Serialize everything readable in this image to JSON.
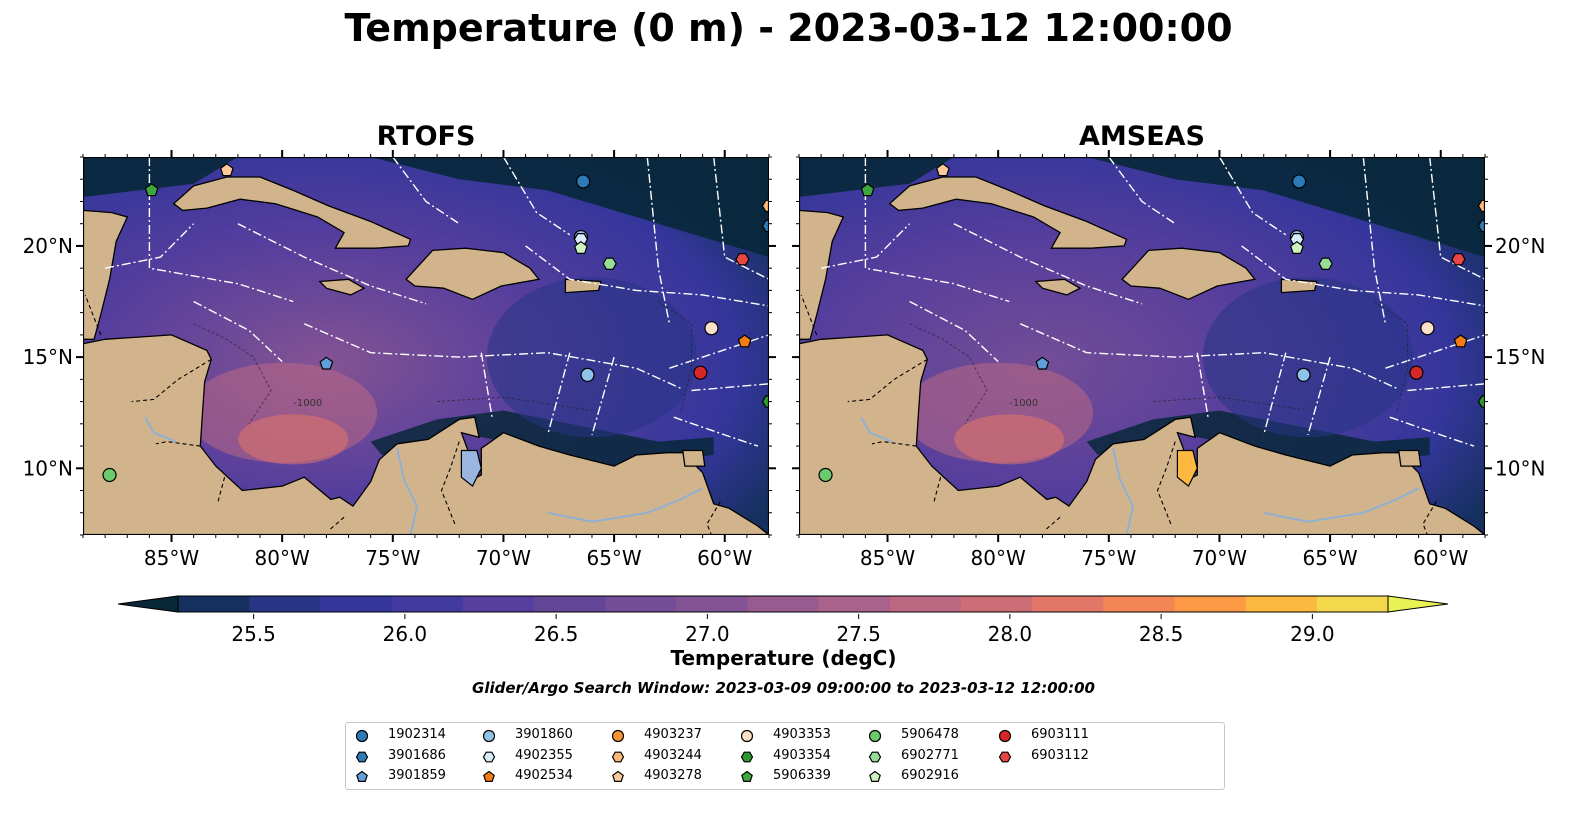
{
  "title": "Temperature (0 m) - 2023-03-12 12:00:00",
  "panels": [
    {
      "title": "RTOFS"
    },
    {
      "title": "AMSEAS"
    }
  ],
  "map": {
    "lon_range": [
      -89,
      -58
    ],
    "lat_range": [
      7,
      24
    ],
    "lon_ticks": [
      "85°W",
      "80°W",
      "75°W",
      "70°W",
      "65°W",
      "60°W"
    ],
    "lat_ticks": [
      "20°N",
      "15°N",
      "10°N"
    ],
    "land_color": "#d2b48c",
    "pacific_color_amseas": "#9ab6e0",
    "contour_label": "-1000"
  },
  "colorbar": {
    "label": "Temperature (degC)",
    "min": 25.25,
    "max": 29.25,
    "step": 0.25,
    "extend": "both",
    "ticks": [
      "25.5",
      "26.0",
      "26.5",
      "27.0",
      "27.5",
      "28.0",
      "28.5",
      "29.0"
    ],
    "colors": [
      "#08283a",
      "#15305e",
      "#263585",
      "#34369b",
      "#433a9f",
      "#553e9d",
      "#634598",
      "#744d96",
      "#845393",
      "#975b90",
      "#a8628c",
      "#bc6883",
      "#cd6e76",
      "#e37767",
      "#f28655",
      "#fd9844",
      "#fcb83f",
      "#f3d84b",
      "#e8f254"
    ]
  },
  "search_window": "Glider/Argo Search Window: 2023-03-09 09:00:00 to 2023-03-12 12:00:00",
  "legend": [
    {
      "id": "1902314",
      "marker": "circle",
      "color": "#2c7bb6"
    },
    {
      "id": "3901686",
      "marker": "hexagon",
      "color": "#2c7bb6"
    },
    {
      "id": "3901859",
      "marker": "pentagon",
      "color": "#5fa0d8"
    },
    {
      "id": "3901860",
      "marker": "circle",
      "color": "#8fc3ea"
    },
    {
      "id": "4902355",
      "marker": "hexagon",
      "color": "#d6ebf7"
    },
    {
      "id": "4902534",
      "marker": "pentagon",
      "color": "#f47c15"
    },
    {
      "id": "4903237",
      "marker": "circle",
      "color": "#f5962e"
    },
    {
      "id": "4903244",
      "marker": "hexagon",
      "color": "#fbb978"
    },
    {
      "id": "4903278",
      "marker": "pentagon",
      "color": "#fdc89a"
    },
    {
      "id": "4903353",
      "marker": "circle",
      "color": "#fde0c8"
    },
    {
      "id": "4903354",
      "marker": "hexagon",
      "color": "#2e9a2e"
    },
    {
      "id": "5906339",
      "marker": "pentagon",
      "color": "#3ea83e"
    },
    {
      "id": "5906478",
      "marker": "circle",
      "color": "#6cc96c"
    },
    {
      "id": "6902771",
      "marker": "hexagon",
      "color": "#97dc97"
    },
    {
      "id": "6902916",
      "marker": "pentagon",
      "color": "#ccf2c2"
    },
    {
      "id": "6903111",
      "marker": "circle",
      "color": "#d62728"
    },
    {
      "id": "6903112",
      "marker": "hexagon",
      "color": "#e84545"
    }
  ],
  "floats": [
    {
      "id": "4903278",
      "lon": -82.5,
      "lat": 23.4
    },
    {
      "id": "5906339",
      "lon": -85.9,
      "lat": 22.5
    },
    {
      "id": "1902314",
      "lon": -66.4,
      "lat": 22.9
    },
    {
      "id": "3901860",
      "lon": -66.5,
      "lat": 20.4
    },
    {
      "id": "4902355",
      "lon": -66.5,
      "lat": 20.3
    },
    {
      "id": "6902916",
      "lon": -66.5,
      "lat": 19.9
    },
    {
      "id": "6902771",
      "lon": -65.2,
      "lat": 19.2
    },
    {
      "id": "6903112",
      "lon": -59.2,
      "lat": 19.4
    },
    {
      "id": "3901686",
      "lon": -58.0,
      "lat": 20.9
    },
    {
      "id": "4903244",
      "lon": -58.0,
      "lat": 21.8
    },
    {
      "id": "3901859",
      "lon": -78.0,
      "lat": 14.7
    },
    {
      "id": "3901860",
      "lon": -66.2,
      "lat": 14.2
    },
    {
      "id": "6903111",
      "lon": -61.1,
      "lat": 14.3
    },
    {
      "id": "4902534",
      "lon": -59.1,
      "lat": 15.7
    },
    {
      "id": "4903353",
      "lon": -60.6,
      "lat": 16.3
    },
    {
      "id": "4903354",
      "lon": -58.0,
      "lat": 13.0
    },
    {
      "id": "5906478",
      "lon": -87.8,
      "lat": 9.7
    }
  ]
}
